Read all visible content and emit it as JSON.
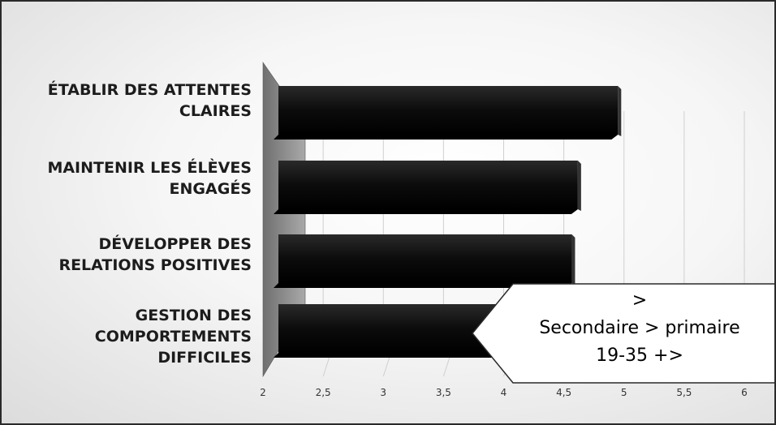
{
  "chart_data": {
    "type": "bar",
    "orientation": "horizontal",
    "categories": [
      "ÉTABLIR DES ATTENTES\nCLAIRES",
      "MAINTENIR LES ÉLÈVES\nENGAGÉS",
      "DÉVELOPPER DES\nRELATIONS POSITIVES",
      "GESTION DES\nCOMPORTEMENTS\nDIFFICILES"
    ],
    "values": [
      4.97,
      4.65,
      4.6,
      4.2
    ],
    "xlim": [
      2,
      6
    ],
    "xticks": [
      "2",
      "2,5",
      "3",
      "3,5",
      "4",
      "4,5",
      "5",
      "5,5",
      "6"
    ],
    "grid": true,
    "bar_color": "#111111"
  },
  "callout": {
    "lines": [
      ">",
      "Secondaire > primaire",
      "19-35 +>"
    ]
  }
}
